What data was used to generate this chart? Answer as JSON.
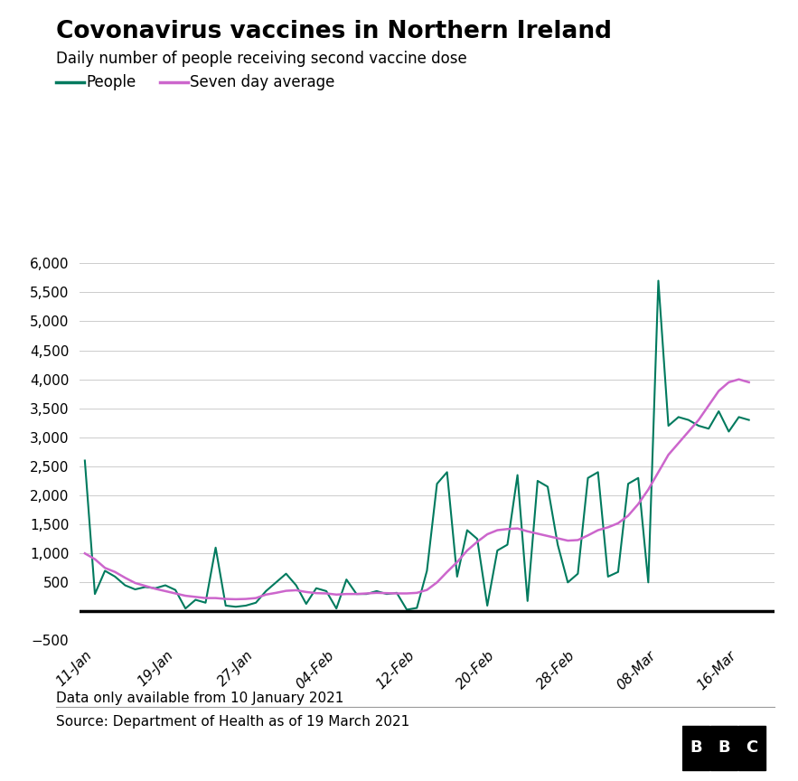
{
  "title": "Covonavirus vaccines in Northern Ireland",
  "subtitle": "Daily number of people receiving second vaccine dose",
  "legend_people": "People",
  "legend_avg": "Seven day average",
  "footer_note": "Data only available from 10 January 2021",
  "source": "Source: Department of Health as of 19 March 2021",
  "people_color": "#007A5E",
  "avg_color": "#CC66CC",
  "zero_line_color": "#000000",
  "bg_color": "#FFFFFF",
  "grid_color": "#CCCCCC",
  "ylim": [
    -500,
    6500
  ],
  "ytick_vals": [
    -500,
    500,
    1000,
    1500,
    2000,
    2500,
    3000,
    3500,
    4000,
    4500,
    5000,
    5500,
    6000
  ],
  "xtick_labels": [
    "11-Jan",
    "19-Jan",
    "27-Jan",
    "04-Feb",
    "12-Feb",
    "20-Feb",
    "28-Feb",
    "08-Mar",
    "16-Mar"
  ],
  "xtick_days": [
    1,
    9,
    17,
    25,
    33,
    41,
    49,
    57,
    65
  ],
  "people_values": [
    2600,
    300,
    700,
    600,
    450,
    380,
    420,
    400,
    450,
    370,
    50,
    200,
    150,
    1100,
    100,
    80,
    100,
    150,
    350,
    500,
    650,
    450,
    130,
    400,
    350,
    50,
    550,
    300,
    300,
    350,
    300,
    320,
    30,
    60,
    700,
    2200,
    2400,
    600,
    1400,
    1250,
    100,
    1050,
    1150,
    2350,
    180,
    2250,
    2150,
    1150,
    500,
    650,
    2300,
    2400,
    600,
    680,
    2200,
    2300,
    500,
    5700,
    3200,
    3350,
    3300,
    3200,
    3150,
    3450,
    3100,
    3350,
    3300
  ],
  "avg_values": [
    1000,
    900,
    750,
    680,
    580,
    490,
    440,
    390,
    350,
    310,
    270,
    250,
    230,
    230,
    215,
    210,
    215,
    230,
    290,
    320,
    355,
    365,
    335,
    315,
    310,
    290,
    300,
    300,
    310,
    320,
    315,
    310,
    310,
    320,
    370,
    500,
    680,
    850,
    1050,
    1200,
    1330,
    1400,
    1420,
    1430,
    1380,
    1340,
    1300,
    1260,
    1220,
    1230,
    1310,
    1400,
    1450,
    1520,
    1650,
    1850,
    2100,
    2400,
    2700,
    2900,
    3100,
    3300,
    3550,
    3800,
    3950,
    4000,
    3950
  ]
}
